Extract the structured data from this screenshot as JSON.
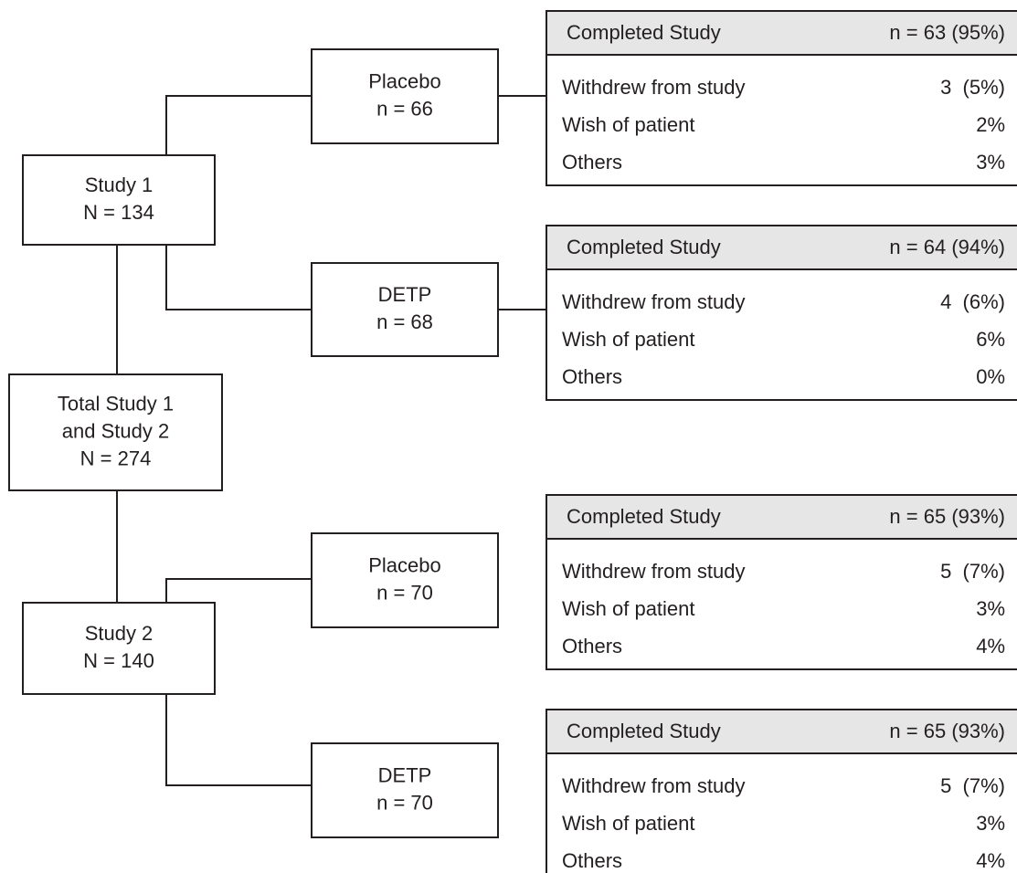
{
  "nodes": [
    {
      "lines": [
        "Study 1",
        "N = 134"
      ]
    },
    {
      "lines": [
        "Total Study 1",
        "and Study 2",
        "N = 274"
      ]
    },
    {
      "lines": [
        "Study 2",
        "N = 140"
      ]
    },
    {
      "lines": [
        "Placebo",
        "n = 66"
      ]
    },
    {
      "lines": [
        "DETP",
        "n = 68"
      ]
    },
    {
      "lines": [
        "Placebo",
        "n = 70"
      ]
    },
    {
      "lines": [
        "DETP",
        "n = 70"
      ]
    }
  ],
  "tables": [
    {
      "header": [
        "Completed Study",
        "n = 63 (95%)"
      ],
      "rows": [
        [
          "Withdrew from study",
          "3  (5%)"
        ],
        [
          "Wish of patient",
          "2%"
        ],
        [
          "Others",
          "3%"
        ]
      ]
    },
    {
      "header": [
        "Completed Study",
        "n = 64 (94%)"
      ],
      "rows": [
        [
          "Withdrew from study",
          "4  (6%)"
        ],
        [
          "Wish of patient",
          "6%"
        ],
        [
          "Others",
          "0%"
        ]
      ]
    },
    {
      "header": [
        "Completed Study",
        "n = 65 (93%)"
      ],
      "rows": [
        [
          "Withdrew from study",
          "5  (7%)"
        ],
        [
          "Wish of patient",
          "3%"
        ],
        [
          "Others",
          "4%"
        ]
      ]
    },
    {
      "header": [
        "Completed Study",
        "n = 65 (93%)"
      ],
      "rows": [
        [
          "Withdrew from study",
          "5  (7%)"
        ],
        [
          "Wish of patient",
          "3%"
        ],
        [
          "Others",
          "4%"
        ]
      ]
    }
  ]
}
